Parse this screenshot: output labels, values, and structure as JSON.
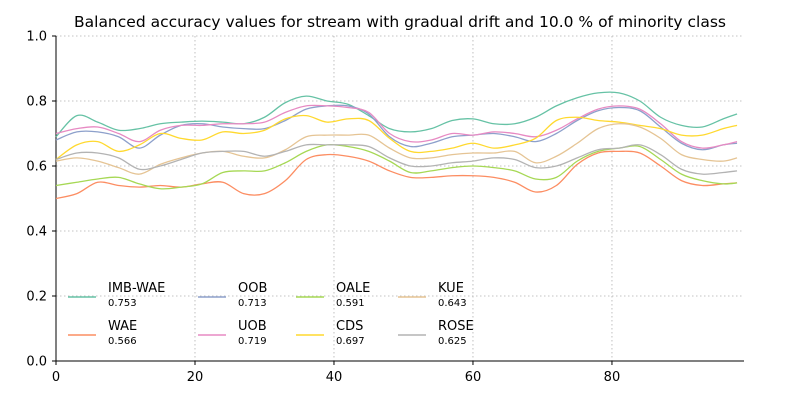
{
  "chart_data": {
    "type": "line",
    "title": "Balanced accuracy values for stream with gradual drift and 10.0 % of minority class",
    "xlabel": "",
    "ylabel": "",
    "xlim": [
      0,
      99
    ],
    "ylim": [
      0.0,
      1.0
    ],
    "x_ticks": [
      0,
      20,
      40,
      60,
      80
    ],
    "y_ticks": [
      0.0,
      0.2,
      0.4,
      0.6,
      0.8,
      1.0
    ],
    "grid": true,
    "legend_placement": "lower-left",
    "x": [
      0,
      3,
      6,
      9,
      12,
      15,
      18,
      21,
      24,
      27,
      30,
      33,
      36,
      39,
      42,
      45,
      48,
      51,
      54,
      57,
      60,
      63,
      66,
      69,
      72,
      75,
      78,
      81,
      84,
      87,
      90,
      93,
      96,
      98
    ],
    "series": [
      {
        "name": "IMB-WAE",
        "score": "0.753",
        "color": "#66c2a5",
        "values": [
          0.69,
          0.755,
          0.735,
          0.71,
          0.715,
          0.73,
          0.735,
          0.738,
          0.735,
          0.73,
          0.75,
          0.795,
          0.815,
          0.8,
          0.79,
          0.755,
          0.715,
          0.705,
          0.715,
          0.74,
          0.745,
          0.73,
          0.73,
          0.75,
          0.785,
          0.81,
          0.825,
          0.825,
          0.8,
          0.75,
          0.725,
          0.72,
          0.745,
          0.76
        ]
      },
      {
        "name": "WAE",
        "score": "0.566",
        "color": "#fc8d62",
        "values": [
          0.5,
          0.515,
          0.55,
          0.54,
          0.535,
          0.54,
          0.535,
          0.545,
          0.55,
          0.515,
          0.515,
          0.555,
          0.62,
          0.635,
          0.63,
          0.615,
          0.585,
          0.565,
          0.565,
          0.57,
          0.57,
          0.565,
          0.55,
          0.52,
          0.54,
          0.605,
          0.64,
          0.645,
          0.64,
          0.6,
          0.555,
          0.54,
          0.545,
          0.548
        ]
      },
      {
        "name": "OOB",
        "score": "0.713",
        "color": "#8da0cb",
        "values": [
          0.68,
          0.705,
          0.705,
          0.69,
          0.655,
          0.695,
          0.725,
          0.73,
          0.72,
          0.715,
          0.715,
          0.74,
          0.775,
          0.785,
          0.785,
          0.76,
          0.69,
          0.66,
          0.67,
          0.69,
          0.695,
          0.7,
          0.69,
          0.675,
          0.7,
          0.74,
          0.77,
          0.78,
          0.77,
          0.72,
          0.67,
          0.65,
          0.665,
          0.67
        ]
      },
      {
        "name": "UOB",
        "score": "0.719",
        "color": "#e78ac3",
        "values": [
          0.7,
          0.715,
          0.72,
          0.7,
          0.675,
          0.71,
          0.725,
          0.725,
          0.73,
          0.73,
          0.735,
          0.765,
          0.785,
          0.785,
          0.78,
          0.765,
          0.7,
          0.675,
          0.68,
          0.7,
          0.695,
          0.705,
          0.7,
          0.69,
          0.71,
          0.745,
          0.775,
          0.785,
          0.775,
          0.73,
          0.675,
          0.655,
          0.665,
          0.675
        ]
      },
      {
        "name": "OALE",
        "score": "0.591",
        "color": "#a6d854",
        "values": [
          0.54,
          0.55,
          0.56,
          0.565,
          0.545,
          0.53,
          0.535,
          0.545,
          0.58,
          0.585,
          0.585,
          0.61,
          0.645,
          0.665,
          0.66,
          0.645,
          0.615,
          0.58,
          0.585,
          0.595,
          0.6,
          0.595,
          0.585,
          0.56,
          0.565,
          0.615,
          0.645,
          0.655,
          0.66,
          0.62,
          0.575,
          0.555,
          0.545,
          0.548
        ]
      },
      {
        "name": "CDS",
        "score": "0.697",
        "color": "#ffd92f",
        "values": [
          0.62,
          0.665,
          0.675,
          0.645,
          0.665,
          0.7,
          0.685,
          0.68,
          0.705,
          0.7,
          0.71,
          0.745,
          0.755,
          0.735,
          0.745,
          0.74,
          0.685,
          0.645,
          0.645,
          0.655,
          0.67,
          0.655,
          0.665,
          0.685,
          0.74,
          0.75,
          0.74,
          0.735,
          0.725,
          0.715,
          0.695,
          0.695,
          0.715,
          0.725
        ]
      },
      {
        "name": "KUE",
        "score": "0.643",
        "color": "#e5c494",
        "values": [
          0.615,
          0.625,
          0.615,
          0.595,
          0.575,
          0.605,
          0.625,
          0.64,
          0.645,
          0.63,
          0.625,
          0.65,
          0.69,
          0.695,
          0.695,
          0.695,
          0.655,
          0.625,
          0.625,
          0.635,
          0.64,
          0.64,
          0.645,
          0.61,
          0.63,
          0.67,
          0.715,
          0.73,
          0.72,
          0.685,
          0.635,
          0.62,
          0.615,
          0.625
        ]
      },
      {
        "name": "ROSE",
        "score": "0.625",
        "color": "#b3b3b3",
        "values": [
          0.62,
          0.64,
          0.64,
          0.625,
          0.59,
          0.6,
          0.62,
          0.64,
          0.645,
          0.645,
          0.63,
          0.645,
          0.665,
          0.665,
          0.665,
          0.66,
          0.625,
          0.6,
          0.6,
          0.61,
          0.615,
          0.625,
          0.62,
          0.595,
          0.6,
          0.625,
          0.65,
          0.655,
          0.665,
          0.635,
          0.59,
          0.575,
          0.58,
          0.585
        ]
      }
    ]
  }
}
